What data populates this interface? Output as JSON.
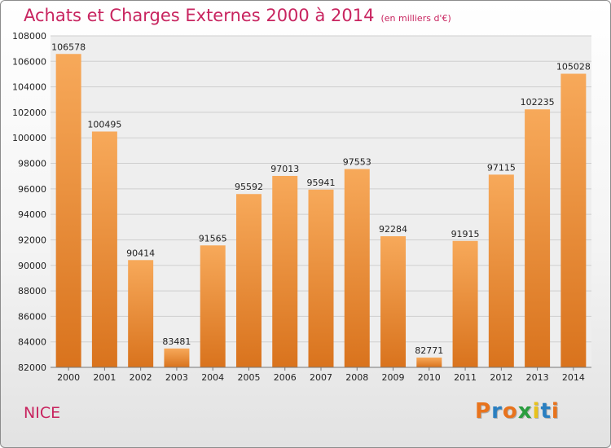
{
  "header": {
    "title": "Achats et Charges Externes 2000 à 2014",
    "subtitle": "(en milliers d'€)"
  },
  "footer": {
    "city": "NICE",
    "logo_text": "Proxiti",
    "logo_colors": [
      "#e8731d",
      "#2a7fc1",
      "#e8731d",
      "#2a9d3f",
      "#e8c21d",
      "#2a7fc1",
      "#e8731d"
    ]
  },
  "colors": {
    "bar_top": "#f7a95a",
    "bar_bottom": "#d9731d",
    "title": "#c8245f"
  },
  "chart_data": {
    "type": "bar",
    "categories": [
      "2000",
      "2001",
      "2002",
      "2003",
      "2004",
      "2005",
      "2006",
      "2007",
      "2008",
      "2009",
      "2010",
      "2011",
      "2012",
      "2013",
      "2014"
    ],
    "values": [
      106578,
      100495,
      90414,
      83481,
      91565,
      95592,
      97013,
      95941,
      97553,
      92284,
      82771,
      91915,
      97115,
      102235,
      105028
    ],
    "ylim": [
      82000,
      108000
    ],
    "yticks": [
      82000,
      84000,
      86000,
      88000,
      90000,
      92000,
      94000,
      96000,
      98000,
      100000,
      102000,
      104000,
      106000,
      108000
    ],
    "grid": true
  }
}
